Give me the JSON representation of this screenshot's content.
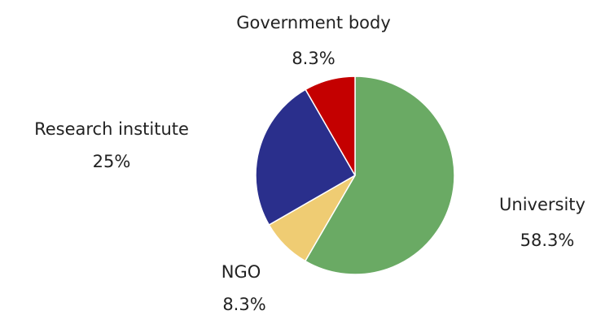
{
  "chart_data": {
    "type": "pie",
    "title": "",
    "start_angle_deg": 0,
    "direction": "clockwise",
    "slices": [
      {
        "label": "University",
        "value": 58.3,
        "value_label": "58.3%",
        "color": "#6aaa64"
      },
      {
        "label": "NGO",
        "value": 8.3,
        "value_label": "8.3%",
        "color": "#efcc73"
      },
      {
        "label": "Research institute",
        "value": 25,
        "value_label": "25%",
        "color": "#2a2f8c"
      },
      {
        "label": "Government body",
        "value": 8.3,
        "value_label": "8.3%",
        "color": "#c40000"
      }
    ]
  }
}
